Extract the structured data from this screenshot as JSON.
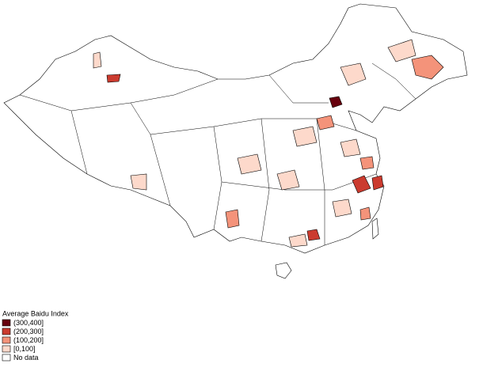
{
  "legend": {
    "title": "Average Baidu Index",
    "items": [
      {
        "label": "(300,400]",
        "color": "#67000d"
      },
      {
        "label": "(200,300]",
        "color": "#cb3b2f"
      },
      {
        "label": "(100,200]",
        "color": "#f4937a"
      },
      {
        "label": "[0,100]",
        "color": "#fdd9cb"
      },
      {
        "label": "No data",
        "color": "#ffffff"
      }
    ]
  }
}
